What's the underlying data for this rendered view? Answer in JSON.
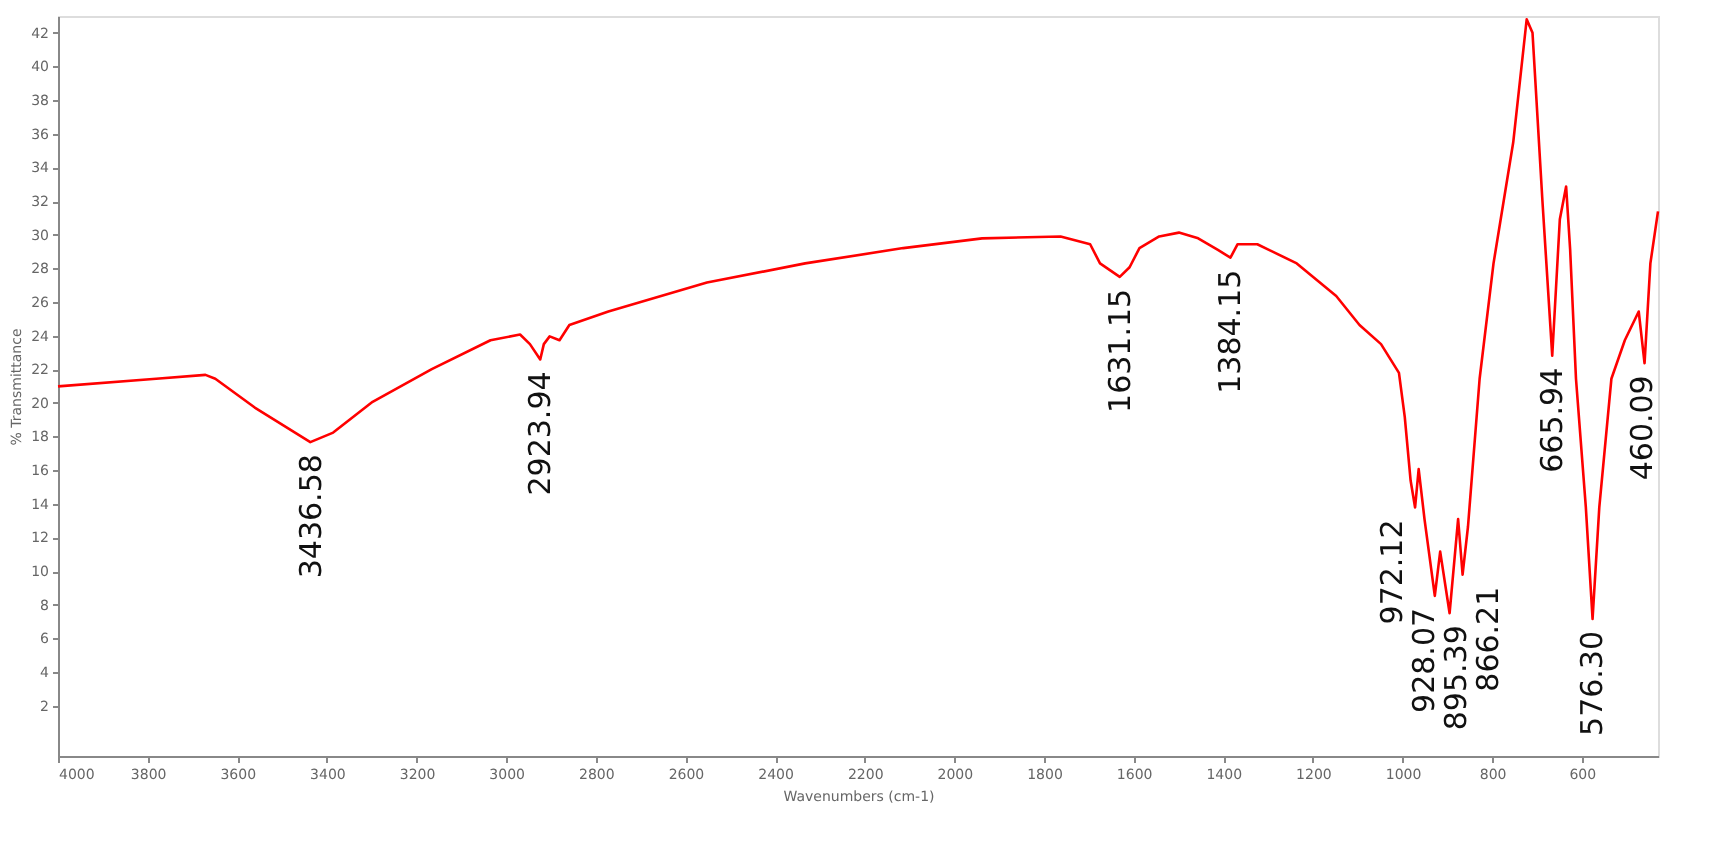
{
  "chart_data": {
    "type": "line",
    "xlabel": "Wavenumbers (cm-1)",
    "ylabel": "% Transmittance",
    "xlim": [
      4000,
      430
    ],
    "xticks": [
      4000,
      3800,
      3600,
      3400,
      3200,
      3000,
      2800,
      2600,
      2400,
      2200,
      2000,
      1800,
      1600,
      1400,
      1200,
      1000,
      800,
      600
    ],
    "ylim": [
      -1,
      43
    ],
    "yticks": [
      2,
      4,
      6,
      8,
      10,
      12,
      14,
      16,
      18,
      20,
      22,
      24,
      26,
      28,
      30,
      32,
      34,
      36,
      38,
      40,
      42
    ],
    "grid": false,
    "marker": "none",
    "line_style": "solid",
    "series": [
      {
        "color": "#ff0000",
        "x": [
          4000,
          3781,
          3671,
          3649,
          3561,
          3437,
          3386,
          3298,
          3166,
          3035,
          2969,
          2947,
          2924,
          2916,
          2903,
          2881,
          2859,
          2772,
          2552,
          2333,
          2114,
          1938,
          1763,
          1697,
          1675,
          1631,
          1609,
          1587,
          1543,
          1499,
          1456,
          1412,
          1384,
          1368,
          1324,
          1236,
          1148,
          1096,
          1048,
          1008,
          995,
          982,
          972,
          964,
          951,
          928,
          916,
          895,
          876,
          866,
          854,
          828,
          797,
          753,
          723,
          710,
          688,
          666,
          649,
          635,
          626,
          613,
          591,
          576,
          561,
          534,
          504,
          473,
          460,
          447,
          430
        ],
        "values": [
          20.98,
          21.43,
          21.66,
          21.43,
          19.72,
          17.66,
          18.23,
          20.06,
          22.0,
          23.72,
          24.06,
          23.49,
          22.58,
          23.49,
          23.95,
          23.72,
          24.63,
          25.43,
          27.15,
          28.29,
          29.2,
          29.78,
          29.89,
          29.43,
          28.29,
          27.49,
          28.06,
          29.2,
          29.89,
          30.12,
          29.78,
          29.09,
          28.63,
          29.43,
          29.43,
          28.29,
          26.35,
          24.63,
          23.49,
          21.78,
          19.15,
          15.38,
          13.78,
          16.06,
          13.09,
          8.52,
          11.15,
          7.49,
          13.09,
          9.78,
          12.63,
          21.43,
          28.29,
          35.49,
          42.8,
          42.0,
          32.06,
          22.8,
          30.92,
          32.86,
          29.09,
          21.43,
          13.78,
          7.15,
          13.78,
          21.43,
          23.72,
          25.43,
          22.35,
          28.29,
          31.38
        ]
      }
    ],
    "annotations": [
      {
        "text": "3436.58",
        "x": 3436.58,
        "y": 17.66
      },
      {
        "text": "2923.94",
        "x": 2923.94,
        "y": 22.58
      },
      {
        "text": "1631.15",
        "x": 1631.15,
        "y": 27.49
      },
      {
        "text": "1384.15",
        "x": 1384.15,
        "y": 28.63
      },
      {
        "text": "972.12",
        "x": 972.12,
        "y": 13.78
      },
      {
        "text": "928.07",
        "x": 928.07,
        "y": 8.52
      },
      {
        "text": "895.39",
        "x": 895.39,
        "y": 7.49
      },
      {
        "text": "866.21",
        "x": 866.21,
        "y": 9.78
      },
      {
        "text": "665.94",
        "x": 665.94,
        "y": 22.8
      },
      {
        "text": "576.30",
        "x": 576.3,
        "y": 7.15
      },
      {
        "text": "460.09",
        "x": 460.09,
        "y": 22.35
      }
    ]
  }
}
